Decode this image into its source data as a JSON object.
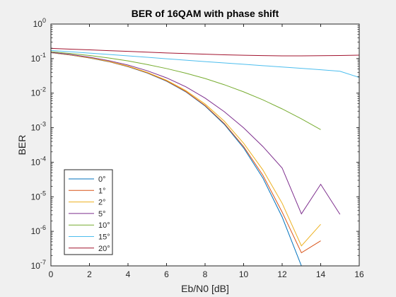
{
  "chart_data": {
    "type": "line",
    "title": "BER of 16QAM with phase shift",
    "xlabel": "Eb/N0 [dB]",
    "ylabel": "BER",
    "xlim": [
      0,
      16
    ],
    "ylim": [
      1e-07,
      1
    ],
    "yscale": "log",
    "grid": false,
    "legend_position": "bottom-left",
    "xticks": [
      "0",
      "2",
      "4",
      "6",
      "8",
      "10",
      "12",
      "14",
      "16"
    ],
    "yticks": [
      {
        "base": "10",
        "exp": "0"
      },
      {
        "base": "10",
        "exp": "-1"
      },
      {
        "base": "10",
        "exp": "-2"
      },
      {
        "base": "10",
        "exp": "-3"
      },
      {
        "base": "10",
        "exp": "-4"
      },
      {
        "base": "10",
        "exp": "-5"
      },
      {
        "base": "10",
        "exp": "-6"
      },
      {
        "base": "10",
        "exp": "-7"
      }
    ],
    "x": [
      0,
      1,
      2,
      3,
      4,
      5,
      6,
      7,
      8,
      9,
      10,
      11,
      12,
      13,
      14,
      15,
      16
    ],
    "series": [
      {
        "name": "0°",
        "color": "#0072bd",
        "values": [
          0.148,
          0.127,
          0.104,
          0.0815,
          0.0585,
          0.0382,
          0.0222,
          0.0109,
          0.00425,
          0.00125,
          0.00026,
          3.5e-05,
          2.6e-06,
          1e-07,
          null,
          null,
          null
        ]
      },
      {
        "name": "1°",
        "color": "#d95319",
        "values": [
          0.149,
          0.128,
          0.105,
          0.0822,
          0.0592,
          0.0388,
          0.0227,
          0.0112,
          0.0044,
          0.00132,
          0.000285,
          4.2e-05,
          3.6e-06,
          2.4e-07,
          5.3e-07,
          null,
          null
        ]
      },
      {
        "name": "2°",
        "color": "#edb120",
        "values": [
          0.15,
          0.129,
          0.106,
          0.0835,
          0.0605,
          0.04,
          0.0237,
          0.0119,
          0.00485,
          0.00154,
          0.000355,
          6e-05,
          6.5e-06,
          3.8e-07,
          1.6e-06,
          null,
          null
        ]
      },
      {
        "name": "5°",
        "color": "#7e2f8e",
        "values": [
          0.152,
          0.132,
          0.11,
          0.0875,
          0.065,
          0.0445,
          0.0277,
          0.0153,
          0.0072,
          0.0029,
          0.00099,
          0.000285,
          6.8e-05,
          3.2e-06,
          2.3e-05,
          3.1e-06,
          null
        ]
      },
      {
        "name": "10°",
        "color": "#77ac30",
        "values": [
          0.158,
          0.141,
          0.123,
          0.104,
          0.0855,
          0.0675,
          0.0515,
          0.0378,
          0.0265,
          0.0175,
          0.0109,
          0.0064,
          0.0035,
          0.0018,
          0.00088,
          null,
          null
        ]
      },
      {
        "name": "15°",
        "color": "#4dbeee",
        "values": [
          0.172,
          0.158,
          0.144,
          0.132,
          0.12,
          0.109,
          0.099,
          0.09,
          0.082,
          0.075,
          0.0685,
          0.0625,
          0.0572,
          0.0522,
          0.0475,
          0.043,
          0.0285
        ]
      },
      {
        "name": "20°",
        "color": "#a2142f",
        "values": [
          0.198,
          0.188,
          0.179,
          0.17,
          0.162,
          0.154,
          0.146,
          0.14,
          0.134,
          0.129,
          0.125,
          0.122,
          0.12,
          0.12,
          0.121,
          0.123,
          0.126
        ]
      }
    ]
  }
}
